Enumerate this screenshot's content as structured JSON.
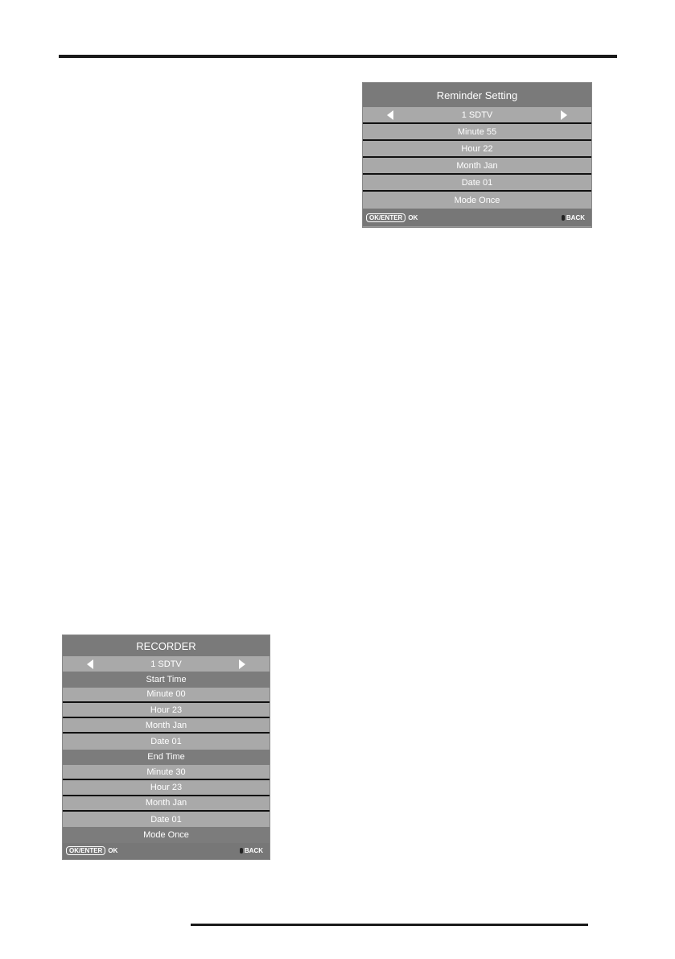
{
  "reminder": {
    "title": "Reminder Setting",
    "rows": [
      {
        "label": "1 SDTV",
        "kind": "channel"
      },
      {
        "label": "Minute 55",
        "kind": "light"
      },
      {
        "label": "Hour 22",
        "kind": "light"
      },
      {
        "label": "Month Jan",
        "kind": "light"
      },
      {
        "label": "Date 01",
        "kind": "light"
      },
      {
        "label": "Mode Once",
        "kind": "light"
      }
    ],
    "footer": {
      "ok_key": "OK/ENTER",
      "ok_label": "OK",
      "back_label": "BACK"
    }
  },
  "recorder": {
    "title": "RECORDER",
    "rows": [
      {
        "label": "1 SDTV",
        "kind": "channel"
      },
      {
        "label": "Start Time",
        "kind": "dark"
      },
      {
        "label": "Minute 00",
        "kind": "light"
      },
      {
        "label": "Hour 23",
        "kind": "light"
      },
      {
        "label": "Month Jan",
        "kind": "light"
      },
      {
        "label": "Date 01",
        "kind": "light"
      },
      {
        "label": "End Time",
        "kind": "dark"
      },
      {
        "label": "Minute 30",
        "kind": "light"
      },
      {
        "label": "Hour 23",
        "kind": "light"
      },
      {
        "label": "Month Jan",
        "kind": "light"
      },
      {
        "label": "Date 01",
        "kind": "light"
      },
      {
        "label": "Mode Once",
        "kind": "dark"
      }
    ],
    "footer": {
      "ok_key": "OK/ENTER",
      "ok_label": "OK",
      "back_label": "BACK"
    }
  }
}
